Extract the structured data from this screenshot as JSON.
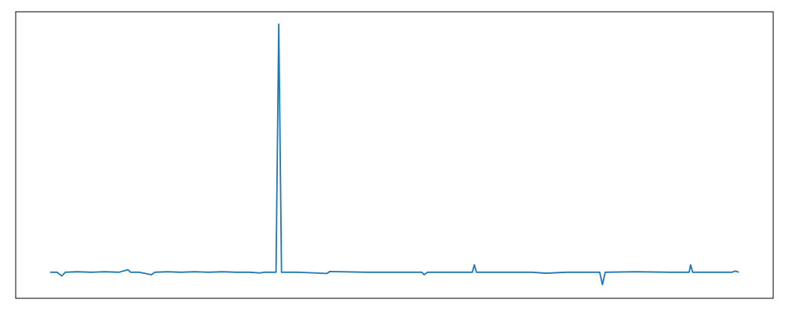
{
  "chart_data": {
    "type": "line",
    "color": "#1f77b4",
    "x": [
      0,
      1,
      1.7,
      2.2,
      4,
      6,
      8,
      10,
      11.3,
      11.7,
      13,
      14.7,
      15.2,
      17,
      19,
      21,
      23,
      25,
      27,
      29,
      30.5,
      31,
      32.8,
      33.2,
      33.6,
      36,
      40.2,
      40.6,
      46,
      54,
      54.3,
      54.8,
      58,
      61.3,
      61.6,
      61.9,
      65,
      70,
      72,
      75,
      79.8,
      80.2,
      80.6,
      85,
      90,
      92.8,
      93,
      93.3,
      96,
      99,
      99.5,
      100
    ],
    "values": [
      0,
      0,
      -1.5,
      0,
      0.2,
      0,
      0.2,
      0,
      1,
      0,
      0,
      -1,
      0,
      0.2,
      0,
      0.2,
      0,
      0.2,
      0,
      0,
      -0.3,
      0,
      0,
      100,
      0,
      0,
      -0.5,
      0.3,
      0,
      0,
      -1,
      0,
      0,
      0,
      3,
      0,
      0,
      0,
      -0.4,
      0,
      0,
      -5,
      0,
      0.2,
      0,
      0,
      3,
      0,
      0,
      0,
      0.5,
      0
    ],
    "xlim": [
      -5,
      105
    ],
    "ylim": [
      -10.5,
      105
    ]
  }
}
